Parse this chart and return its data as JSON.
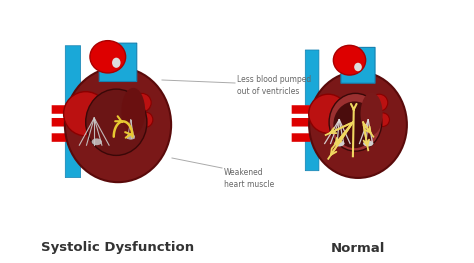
{
  "background_color": "#ffffff",
  "label_left": "Systolic Dysfunction",
  "label_right": "Normal",
  "annotation1_text": "Less blood pumped\nout of ventricles",
  "annotation2_text": "Weakened\nheart muscle",
  "colors": {
    "red_bright": "#dd0000",
    "red_medium": "#bb1111",
    "red_dark": "#7a1818",
    "red_very_dark": "#4a0c0c",
    "blue_bright": "#1aa8d8",
    "blue_dark": "#1580b0",
    "maroon": "#6b1515",
    "brown_dark": "#3d0d0d",
    "white_fiber": "#e0e0e0",
    "yellow": "#e8c832",
    "yellow_light": "#f0d860",
    "gray_text": "#666666",
    "black_text": "#333333",
    "inner_dark": "#5a1212",
    "skin_light": "#c07070"
  },
  "figsize": [
    4.74,
    2.63
  ],
  "dpi": 100
}
